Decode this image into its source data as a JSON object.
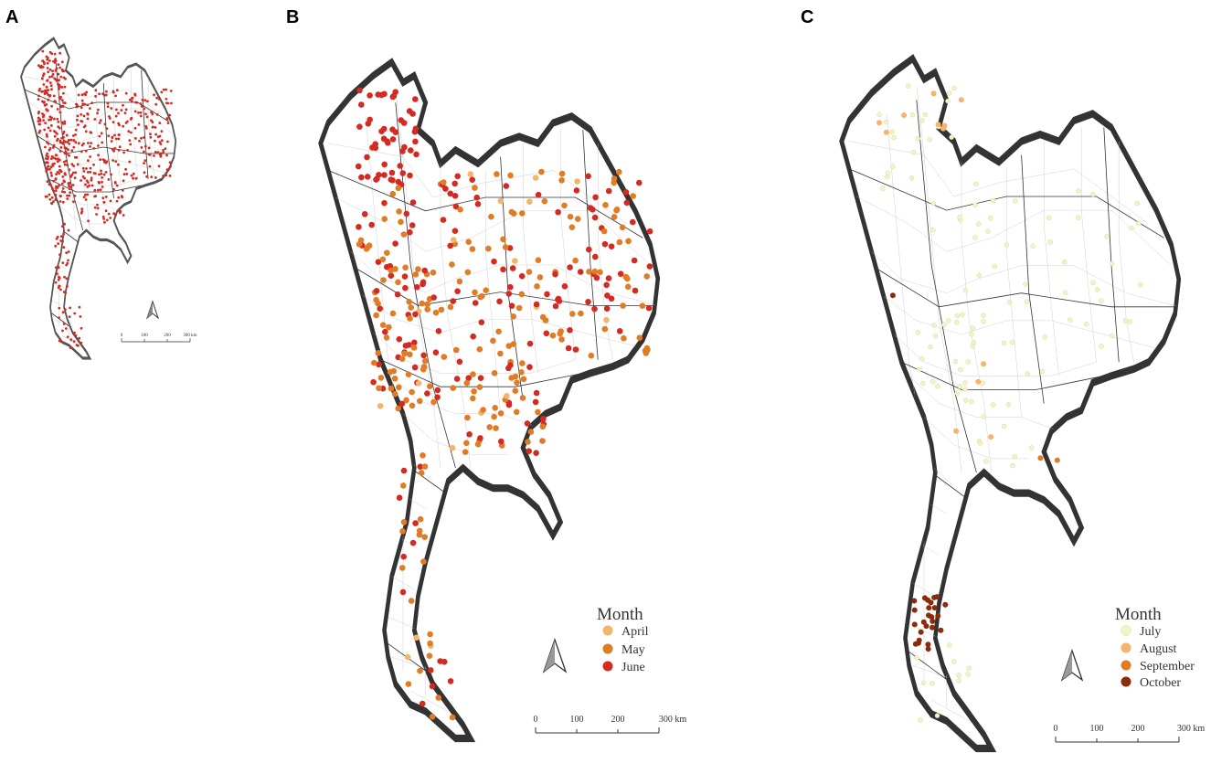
{
  "panels": [
    {
      "label": "A",
      "legend": null,
      "scale": {
        "ticks": [
          "0",
          "100",
          "200",
          "300 km"
        ]
      }
    },
    {
      "label": "B",
      "legend": {
        "title": "Month",
        "entries": [
          {
            "label": "April",
            "color": "#f4b46a"
          },
          {
            "label": "May",
            "color": "#e07b26"
          },
          {
            "label": "June",
            "color": "#d42a22"
          }
        ]
      },
      "scale": {
        "ticks": [
          "0",
          "100",
          "200",
          "300 km"
        ]
      }
    },
    {
      "label": "C",
      "legend": {
        "title": "Month",
        "entries": [
          {
            "label": "July",
            "color": "#f3f3c8"
          },
          {
            "label": "August",
            "color": "#f4b46a"
          },
          {
            "label": "September",
            "color": "#e07b26"
          },
          {
            "label": "October",
            "color": "#8c2a0c"
          }
        ]
      },
      "scale": {
        "ticks": [
          "0",
          "100",
          "200",
          "300 km"
        ]
      }
    }
  ],
  "colors": {
    "all_cases": "#d42a22",
    "border": "#333333",
    "subdivision": "#bbbbbb"
  }
}
